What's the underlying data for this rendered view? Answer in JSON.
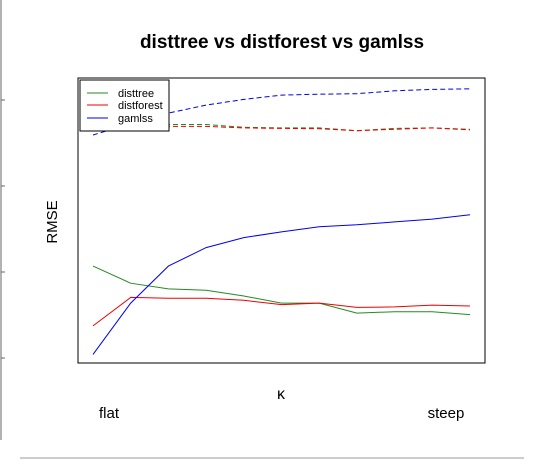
{
  "chart_data": {
    "type": "line",
    "title": "disttree vs distforest vs gamlss",
    "xlabel": "κ",
    "ylabel": "RMSE",
    "x_tick_labels": [
      "flat",
      "steep"
    ],
    "xlim": [
      0,
      10
    ],
    "ylim": [
      0,
      10
    ],
    "axes_ticks_shown": false,
    "grid": false,
    "legend": {
      "position": "top-left",
      "entries": [
        {
          "name": "disttree",
          "color": "#228B22"
        },
        {
          "name": "distforest",
          "color": "#EE0000"
        },
        {
          "name": "gamlss",
          "color": "#0000EE"
        }
      ]
    },
    "x": [
      0,
      1,
      2,
      3,
      4,
      5,
      6,
      7,
      8,
      9,
      10
    ],
    "series": [
      {
        "name": "disttree",
        "color": "#228B22",
        "dash": false,
        "values": [
          3.4,
          2.8,
          2.6,
          2.55,
          2.35,
          2.1,
          2.1,
          1.75,
          1.8,
          1.8,
          1.7
        ]
      },
      {
        "name": "distforest",
        "color": "#EE0000",
        "dash": false,
        "values": [
          1.3,
          2.3,
          2.27,
          2.27,
          2.2,
          2.05,
          2.1,
          1.95,
          1.97,
          2.03,
          2.0
        ]
      },
      {
        "name": "gamlss",
        "color": "#0000EE",
        "dash": false,
        "values": [
          0.3,
          2.1,
          3.4,
          4.05,
          4.4,
          4.6,
          4.78,
          4.85,
          4.95,
          5.05,
          5.2
        ]
      },
      {
        "name": "disttree",
        "color": "#228B22",
        "dash": true,
        "values": [
          8.38,
          8.35,
          8.37,
          8.37,
          8.27,
          8.25,
          8.25,
          8.15,
          8.23,
          8.25,
          8.2
        ]
      },
      {
        "name": "distforest",
        "color": "#EE0000",
        "dash": true,
        "values": [
          8.3,
          8.28,
          8.3,
          8.3,
          8.25,
          8.23,
          8.22,
          8.15,
          8.2,
          8.25,
          8.18
        ]
      },
      {
        "name": "gamlss",
        "color": "#0000EE",
        "dash": true,
        "values": [
          8.0,
          8.4,
          8.77,
          9.05,
          9.25,
          9.4,
          9.43,
          9.45,
          9.55,
          9.6,
          9.62
        ]
      }
    ]
  }
}
